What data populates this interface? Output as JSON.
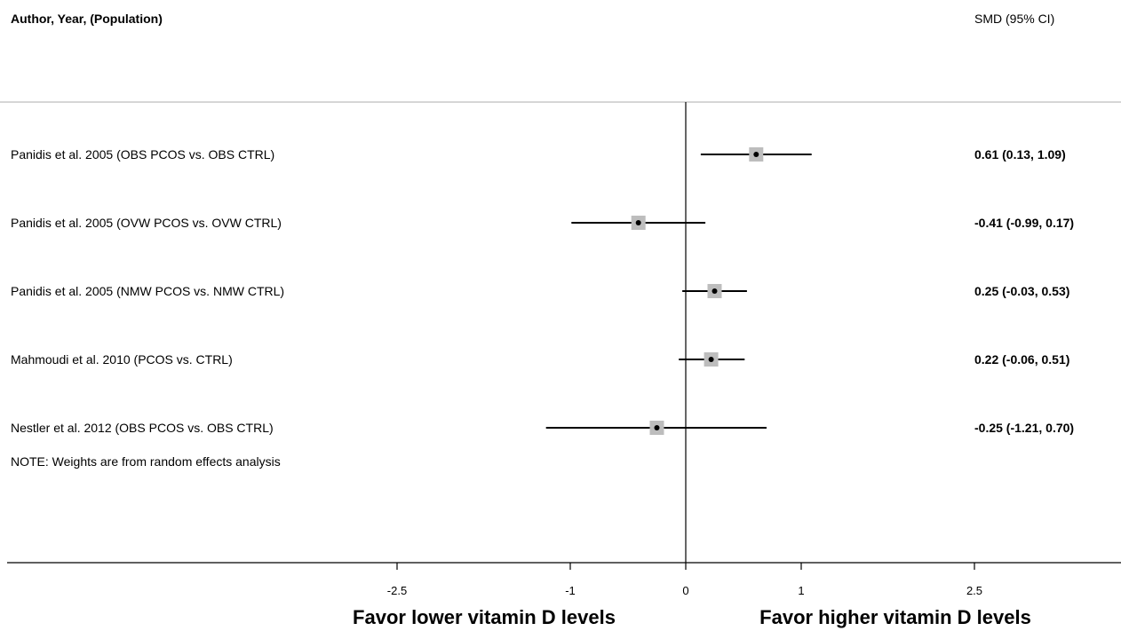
{
  "chart_data": {
    "type": "forest",
    "header_left": "Author, Year, (Population)",
    "header_right": "SMD (95% CI)",
    "studies": [
      {
        "label": "Panidis et al. 2005 (OBS PCOS vs. OBS CTRL)",
        "smd": 0.61,
        "lower": 0.13,
        "upper": 1.09,
        "estimate_text": "0.61 (0.13, 1.09)"
      },
      {
        "label": "Panidis et al. 2005 (OVW PCOS vs. OVW CTRL)",
        "smd": -0.41,
        "lower": -0.99,
        "upper": 0.17,
        "estimate_text": "-0.41 (-0.99, 0.17)"
      },
      {
        "label": "Panidis et al. 2005 (NMW PCOS vs. NMW CTRL)",
        "smd": 0.25,
        "lower": -0.03,
        "upper": 0.53,
        "estimate_text": "0.25 (-0.03, 0.53)"
      },
      {
        "label": "Mahmoudi et al. 2010 (PCOS vs. CTRL)",
        "smd": 0.22,
        "lower": -0.06,
        "upper": 0.51,
        "estimate_text": "0.22 (-0.06, 0.51)"
      },
      {
        "label": "Nestler et al. 2012 (OBS PCOS vs. OBS CTRL)",
        "smd": -0.25,
        "lower": -1.21,
        "upper": 0.7,
        "estimate_text": "-0.25 (-1.21, 0.70)"
      }
    ],
    "note": "NOTE: Weights are from random effects analysis",
    "x_ticks": [
      -2.5,
      -1,
      0,
      1,
      2.5
    ],
    "x_tick_labels": [
      "-2.5",
      "-1",
      "0",
      "1",
      "2.5"
    ],
    "reference_line": 0,
    "xlabel_left": "Favor lower vitamin D levels",
    "xlabel_right": "Favor higher vitamin D levels",
    "colors": {
      "box": "#bdbdbd",
      "line": "#000000",
      "rule": "#c8c8c8"
    }
  }
}
